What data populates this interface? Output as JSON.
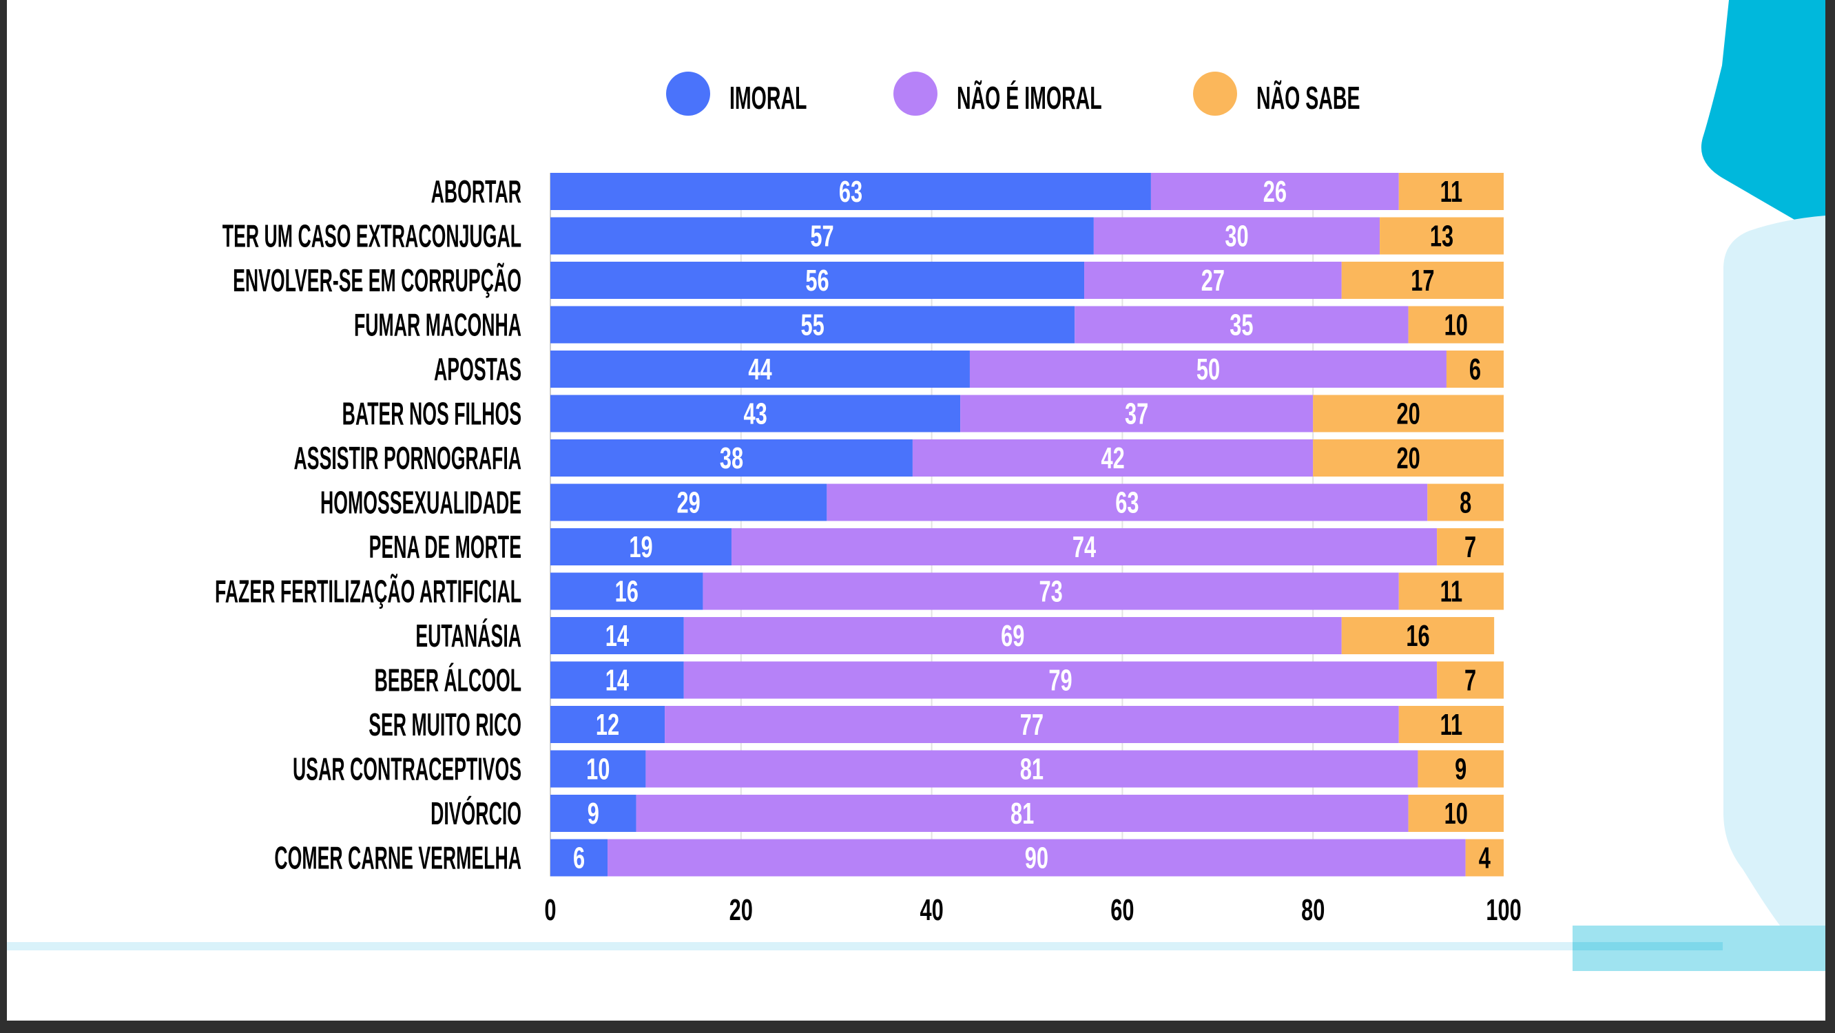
{
  "colors": {
    "imoral": "#4a73fb",
    "nao_imoral": "#b682f8",
    "nao_sabe": "#fbb75b",
    "accent_dark": "#00b8dc",
    "accent_light": "#d9f2fa",
    "band": "#9fe3f0"
  },
  "chart_data": {
    "type": "bar",
    "orientation": "horizontal",
    "stacked": true,
    "legend_position": "top",
    "grid": true,
    "xlim": [
      0,
      100
    ],
    "x_ticks": [
      "0",
      "20",
      "40",
      "60",
      "80",
      "100"
    ],
    "categories": [
      "ABORTAR",
      "TER UM CASO EXTRACONJUGAL",
      "ENVOLVER-SE EM CORRUPÇÃO",
      "FUMAR MACONHA",
      "APOSTAS",
      "BATER NOS FILHOS",
      "ASSISTIR PORNOGRAFIA",
      "HOMOSSEXUALIDADE",
      "PENA DE MORTE",
      "FAZER FERTILIZAÇÃO ARTIFICIAL",
      "EUTANÁSIA",
      "BEBER ÁLCOOL",
      "SER MUITO RICO",
      "USAR CONTRACEPTIVOS",
      "DIVÓRCIO",
      "COMER CARNE VERMELHA"
    ],
    "series": [
      {
        "name": "IMORAL",
        "color": "#4a73fb",
        "label_color": "#ffffff",
        "values": [
          63,
          57,
          56,
          55,
          44,
          43,
          38,
          29,
          19,
          16,
          14,
          14,
          12,
          10,
          9,
          6
        ]
      },
      {
        "name": "NÃO É IMORAL",
        "color": "#b682f8",
        "label_color": "#ffffff",
        "values": [
          26,
          30,
          27,
          35,
          50,
          37,
          42,
          63,
          74,
          73,
          69,
          79,
          77,
          81,
          81,
          90
        ]
      },
      {
        "name": "NÃO SABE",
        "color": "#fbb75b",
        "label_color": "#000000",
        "values": [
          11,
          13,
          17,
          10,
          6,
          20,
          20,
          8,
          7,
          11,
          16,
          7,
          11,
          9,
          10,
          4
        ]
      }
    ]
  }
}
